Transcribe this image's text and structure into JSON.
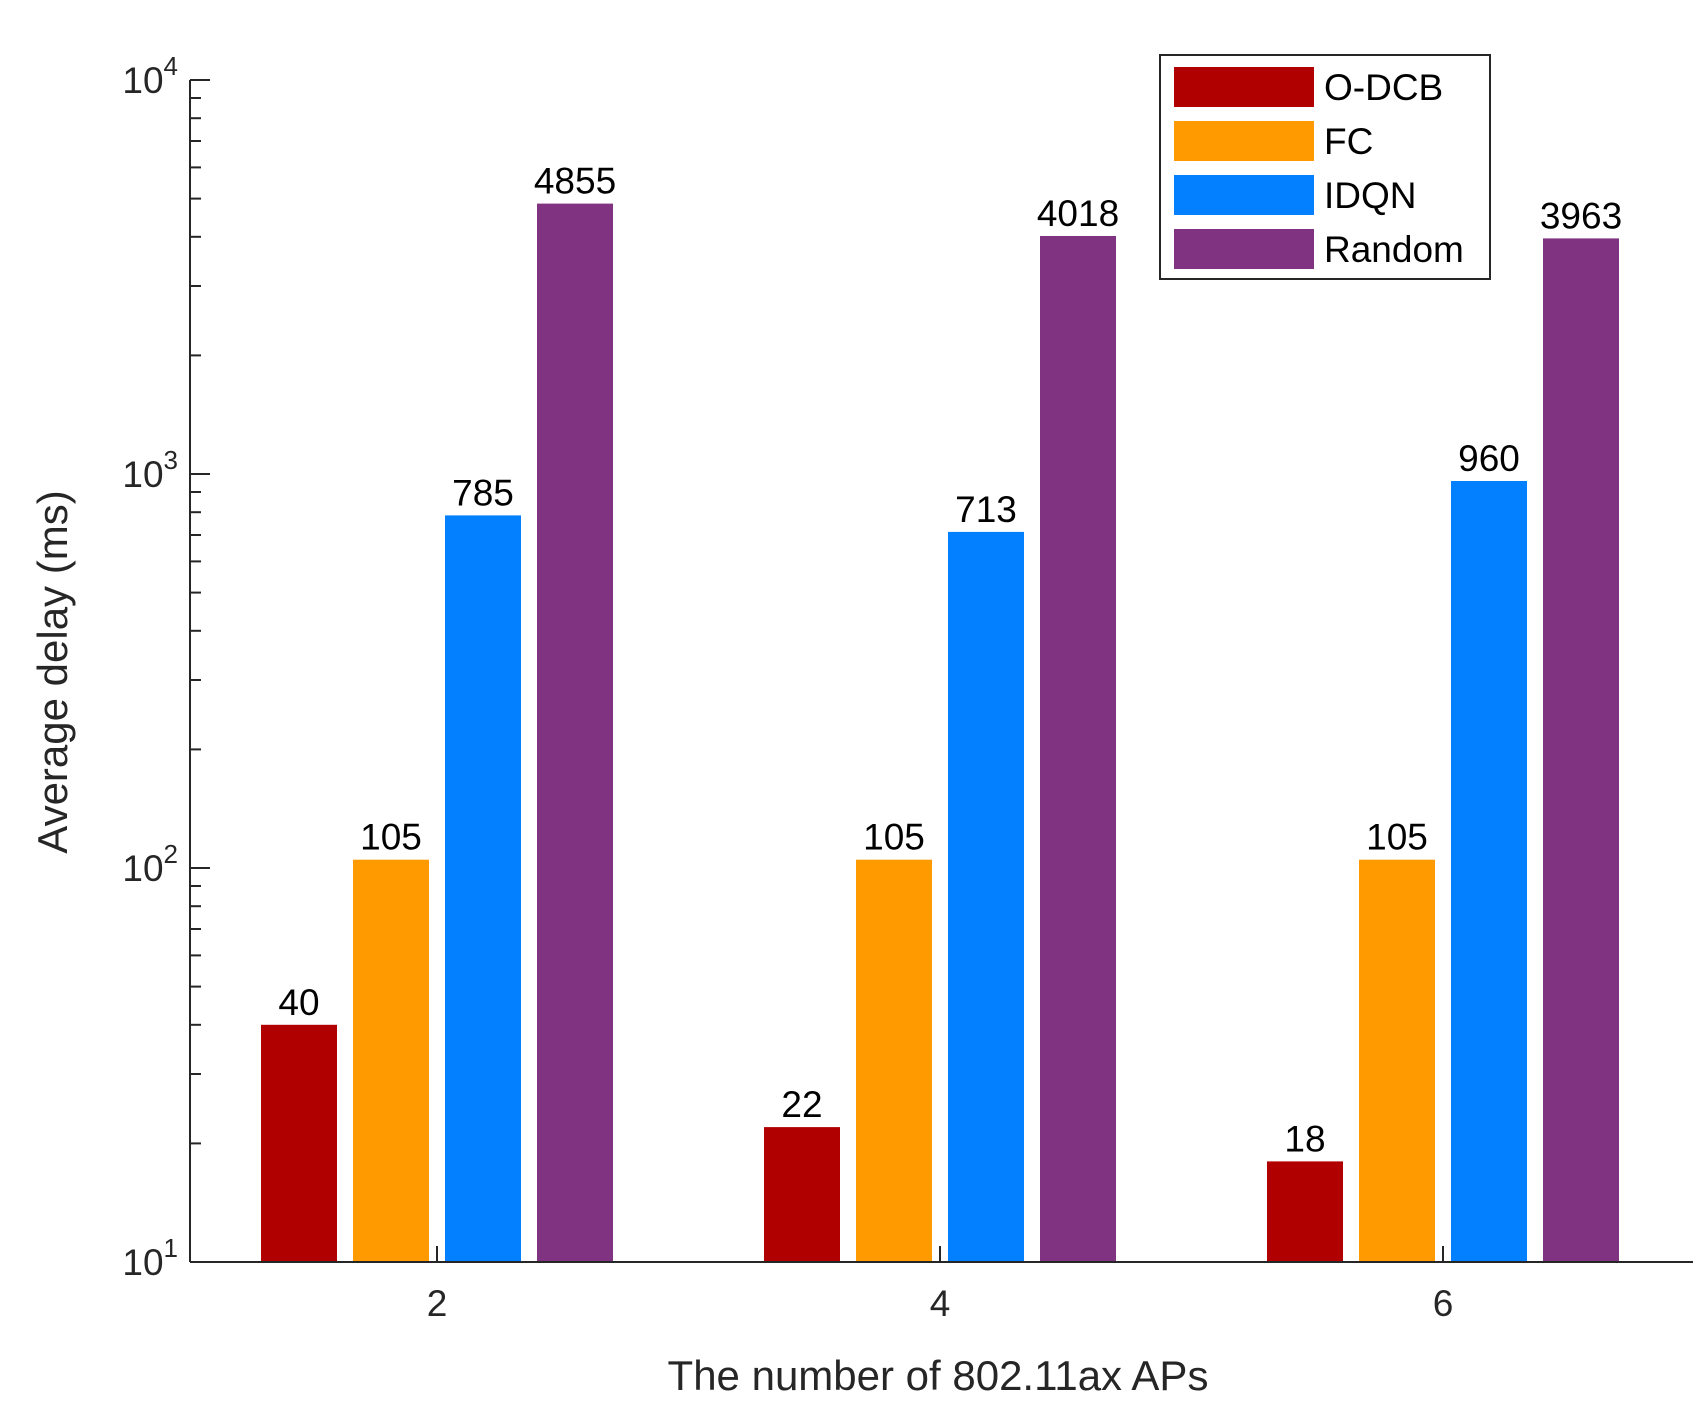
{
  "chart_data": {
    "type": "bar",
    "scale": "log",
    "xlabel": "The number of 802.11ax APs",
    "ylabel": "Average delay (ms)",
    "categories": [
      "2",
      "4",
      "6"
    ],
    "ylim": [
      10,
      10000
    ],
    "yticks": [
      {
        "value": 10,
        "base": "10",
        "exp": "1"
      },
      {
        "value": 100,
        "base": "10",
        "exp": "2"
      },
      {
        "value": 1000,
        "base": "10",
        "exp": "3"
      },
      {
        "value": 10000,
        "base": "10",
        "exp": "4"
      }
    ],
    "legend_position": "top-right",
    "series": [
      {
        "name": "O-DCB",
        "color": "#b00000",
        "values": [
          40,
          22,
          18
        ],
        "labels": [
          "40",
          "22",
          "18"
        ]
      },
      {
        "name": "FC",
        "color": "#ff9a00",
        "values": [
          105,
          105,
          105
        ],
        "labels": [
          "105",
          "105",
          "105"
        ]
      },
      {
        "name": "IDQN",
        "color": "#0380ff",
        "values": [
          785,
          713,
          960
        ],
        "labels": [
          "785",
          "713",
          "960"
        ]
      },
      {
        "name": "Random",
        "color": "#7f3380",
        "values": [
          4855,
          4018,
          3963
        ],
        "labels": [
          "4855",
          "4018",
          "3963"
        ]
      }
    ]
  }
}
